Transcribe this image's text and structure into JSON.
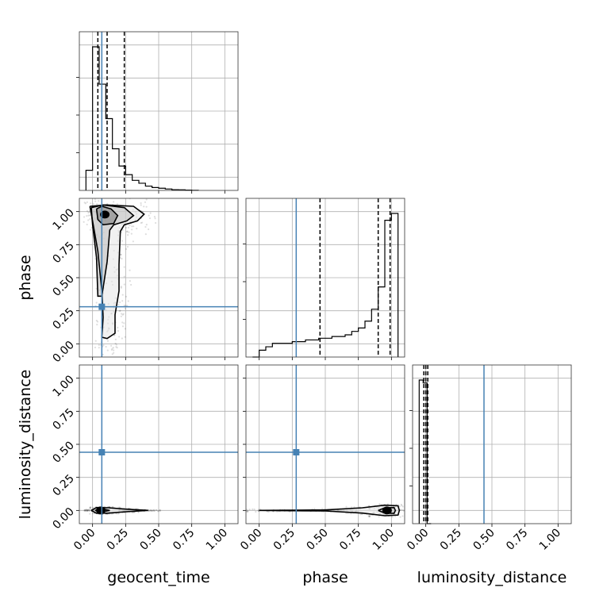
{
  "chart_data": {
    "type": "corner",
    "parameters": [
      "geocent_time",
      "phase",
      "luminosity_distance"
    ],
    "xlabels": [
      "geocent_time",
      "phase",
      "luminosity_distance"
    ],
    "ylabels": [
      "",
      "phase",
      "luminosity_distance"
    ],
    "axis_range": [
      -0.1,
      1.1
    ],
    "tick_values": [
      0.0,
      0.25,
      0.5,
      0.75,
      1.0
    ],
    "tick_labels": [
      "0.00",
      "0.25",
      "0.50",
      "0.75",
      "1.00"
    ],
    "grid": true,
    "truths": {
      "geocent_time": 0.07,
      "phase": 0.28,
      "luminosity_distance": 0.44
    },
    "truth_color": "#4682b4",
    "histograms": {
      "geocent_time": {
        "bin_edges": [
          -0.05,
          0.0,
          0.05,
          0.1,
          0.15,
          0.2,
          0.25,
          0.3,
          0.35,
          0.4,
          0.45,
          0.5,
          0.55,
          0.6,
          0.65,
          0.7,
          0.75,
          0.8
        ],
        "counts": [
          0.14,
          1.0,
          0.74,
          0.5,
          0.29,
          0.17,
          0.11,
          0.07,
          0.05,
          0.03,
          0.02,
          0.015,
          0.01,
          0.005,
          0.004,
          0.002,
          0.001
        ],
        "quantiles": [
          0.04,
          0.11,
          0.24
        ]
      },
      "phase": {
        "bin_edges": [
          -0.05,
          0.0,
          0.05,
          0.1,
          0.15,
          0.2,
          0.25,
          0.3,
          0.35,
          0.4,
          0.45,
          0.5,
          0.55,
          0.6,
          0.65,
          0.7,
          0.75,
          0.8,
          0.85,
          0.9,
          0.95,
          1.0,
          1.05
        ],
        "counts": [
          0.0,
          0.04,
          0.06,
          0.08,
          0.08,
          0.08,
          0.09,
          0.09,
          0.1,
          0.1,
          0.11,
          0.11,
          0.12,
          0.12,
          0.13,
          0.15,
          0.17,
          0.21,
          0.28,
          0.41,
          0.8,
          0.84
        ],
        "quantiles": [
          0.46,
          0.9,
          0.99
        ]
      },
      "luminosity_distance": {
        "bin_edges": [
          -0.05,
          -0.02,
          0.01,
          0.04
        ],
        "counts": [
          1.0,
          0.98,
          0.0
        ],
        "quantiles": [
          -0.015,
          0.0,
          0.015
        ]
      }
    },
    "contours_2d": {
      "phase_vs_geocent_time": {
        "x": "geocent_time",
        "y": "phase",
        "levels": [
          [
            [
              0.03,
              1.02
            ],
            [
              0.07,
              1.04
            ],
            [
              0.14,
              1.02
            ],
            [
              0.19,
              0.97
            ],
            [
              0.16,
              0.91
            ],
            [
              0.08,
              0.9
            ],
            [
              0.04,
              0.94
            ],
            [
              0.03,
              1.02
            ]
          ],
          [
            [
              -0.01,
              1.03
            ],
            [
              0.08,
              1.05
            ],
            [
              0.24,
              1.03
            ],
            [
              0.31,
              0.97
            ],
            [
              0.26,
              0.93
            ],
            [
              0.16,
              0.9
            ],
            [
              0.13,
              0.86
            ],
            [
              0.11,
              0.62
            ],
            [
              0.07,
              0.36
            ],
            [
              0.04,
              0.36
            ],
            [
              0.03,
              0.65
            ],
            [
              0.0,
              0.9
            ],
            [
              -0.01,
              1.03
            ]
          ],
          [
            [
              -0.02,
              1.04
            ],
            [
              0.1,
              1.05
            ],
            [
              0.31,
              1.04
            ],
            [
              0.39,
              0.98
            ],
            [
              0.34,
              0.93
            ],
            [
              0.24,
              0.9
            ],
            [
              0.21,
              0.85
            ],
            [
              0.2,
              0.6
            ],
            [
              0.2,
              0.4
            ],
            [
              0.17,
              0.22
            ],
            [
              0.17,
              0.08
            ],
            [
              0.11,
              0.04
            ],
            [
              0.07,
              0.05
            ],
            [
              0.08,
              0.2
            ],
            [
              0.07,
              0.4
            ],
            [
              0.04,
              0.7
            ],
            [
              0.0,
              0.93
            ],
            [
              -0.02,
              1.04
            ]
          ]
        ]
      },
      "luminosity_distance_vs_geocent_time": {
        "x": "geocent_time",
        "y": "luminosity_distance",
        "levels": [
          [
            [
              0.02,
              0.0
            ],
            [
              0.07,
              0.012
            ],
            [
              0.13,
              0.0
            ],
            [
              0.07,
              -0.012
            ],
            [
              0.02,
              0.0
            ]
          ],
          [
            [
              -0.01,
              0.0
            ],
            [
              0.03,
              0.022
            ],
            [
              0.12,
              0.02
            ],
            [
              0.25,
              0.01
            ],
            [
              0.42,
              0.0
            ],
            [
              0.25,
              -0.01
            ],
            [
              0.12,
              -0.02
            ],
            [
              0.03,
              -0.022
            ],
            [
              -0.01,
              0.0
            ]
          ]
        ]
      },
      "luminosity_distance_vs_phase": {
        "x": "phase",
        "y": "luminosity_distance",
        "levels": [
          [
            [
              0.9,
              0.0
            ],
            [
              0.95,
              0.02
            ],
            [
              1.02,
              0.022
            ],
            [
              1.03,
              0.0
            ],
            [
              1.02,
              -0.022
            ],
            [
              0.95,
              -0.02
            ],
            [
              0.9,
              0.0
            ]
          ],
          [
            [
              0.0,
              0.0
            ],
            [
              0.5,
              0.004
            ],
            [
              0.78,
              0.02
            ],
            [
              0.95,
              0.04
            ],
            [
              1.05,
              0.035
            ],
            [
              1.06,
              0.0
            ],
            [
              1.05,
              -0.035
            ],
            [
              0.95,
              -0.04
            ],
            [
              0.78,
              -0.02
            ],
            [
              0.5,
              -0.004
            ],
            [
              0.0,
              0.0
            ]
          ]
        ]
      }
    }
  }
}
